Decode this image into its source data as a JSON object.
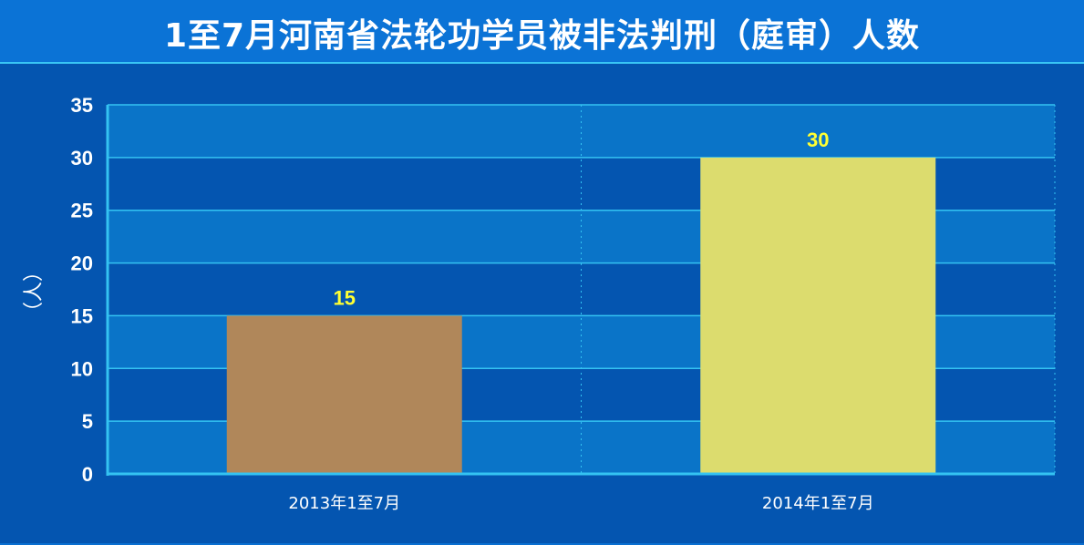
{
  "header": {
    "title": "1至7月河南省法轮功学员被非法判刑（庭审）人数"
  },
  "colors": {
    "background": "#0455b0",
    "band_light": "#0a74c8",
    "gridline": "#34c3f2",
    "axis": "#34c3f2",
    "tick_text": "#ffffff",
    "value_text": "#ffff33"
  },
  "chart_data": {
    "type": "bar",
    "title": "1至7月河南省法轮功学员被非法判刑（庭审）人数",
    "xlabel": "",
    "ylabel": "（人）",
    "categories": [
      "2013年1至7月",
      "2014年1至7月"
    ],
    "values": [
      15,
      30
    ],
    "bar_colors": [
      "#b0875a",
      "#dcdc6e"
    ],
    "data_labels": [
      "15",
      "30"
    ],
    "ylim": [
      0,
      35
    ],
    "yticks": [
      "0",
      "5",
      "10",
      "15",
      "20",
      "25",
      "30",
      "35"
    ],
    "grid": true,
    "legend": "none"
  }
}
